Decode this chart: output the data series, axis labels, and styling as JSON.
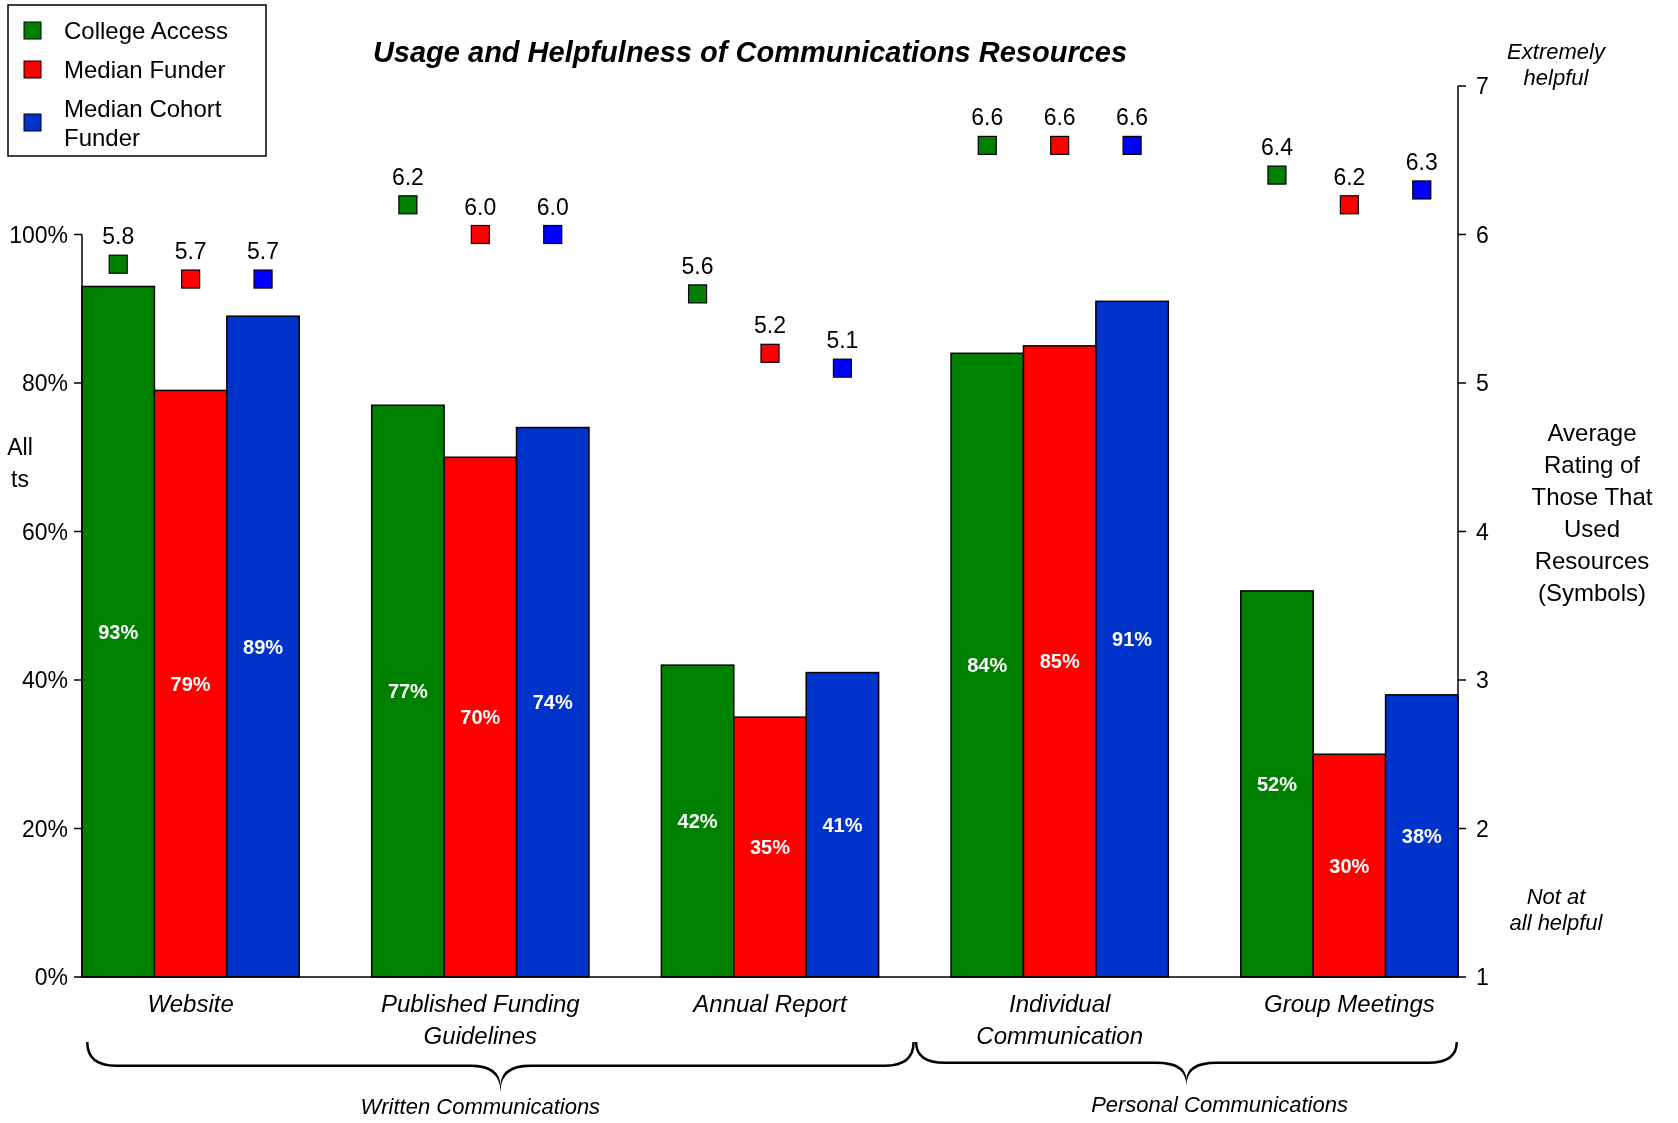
{
  "chart_data": {
    "type": "bar",
    "title": "Usage and Helpfulness of Communications Resources",
    "ylabel": "All\nts",
    "y2label": "Average Rating of Those That Used Resources (Symbols)",
    "categories": [
      "Website",
      "Published Funding Guidelines",
      "Annual Report",
      "Individual Communication",
      "Group Meetings"
    ],
    "series": [
      {
        "name": "College Access",
        "color": "#008000",
        "values": [
          93,
          77,
          42,
          84,
          52
        ],
        "value_labels": [
          "93%",
          "77%",
          "42%",
          "84%",
          "52%"
        ]
      },
      {
        "name": "Median Funder",
        "color": "#ff0000",
        "values": [
          79,
          70,
          35,
          85,
          30
        ],
        "value_labels": [
          "79%",
          "70%",
          "35%",
          "85%",
          "30%"
        ]
      },
      {
        "name": "Median Cohort Funder",
        "color": "#0033cc",
        "values": [
          89,
          74,
          41,
          91,
          38
        ],
        "value_labels": [
          "89%",
          "74%",
          "41%",
          "91%",
          "38%"
        ]
      },
      {
        "type": "scatter",
        "axis": "y2",
        "marker": "square",
        "color": "#008000",
        "values": [
          5.8,
          6.2,
          5.6,
          6.6,
          6.4
        ],
        "value_labels": [
          "5.8",
          "6.2",
          "5.6",
          "6.6",
          "6.4"
        ]
      },
      {
        "type": "scatter",
        "axis": "y2",
        "marker": "square",
        "color": "#ff0000",
        "values": [
          5.7,
          6.0,
          5.2,
          6.6,
          6.2
        ],
        "value_labels": [
          "5.7",
          "6.0",
          "5.2",
          "6.6",
          "6.2"
        ]
      },
      {
        "type": "scatter",
        "axis": "y2",
        "marker": "square",
        "color": "#0000ff",
        "values": [
          5.7,
          6.0,
          5.1,
          6.6,
          6.3
        ],
        "value_labels": [
          "5.7",
          "6.0",
          "5.1",
          "6.6",
          "6.3"
        ]
      }
    ],
    "ylim": [
      0,
      120
    ],
    "yticks": [
      {
        "value": 0,
        "label": "0%"
      },
      {
        "value": 20,
        "label": "20%"
      },
      {
        "value": 40,
        "label": "40%"
      },
      {
        "value": 60,
        "label": "60%"
      },
      {
        "value": 80,
        "label": "80%"
      },
      {
        "value": 100,
        "label": "100%"
      }
    ],
    "y2lim": [
      1,
      7
    ],
    "y2ticks": [
      1,
      2,
      3,
      4,
      5,
      6,
      7
    ],
    "grid": false,
    "legend": "top left",
    "annotations": [
      "Extremely helpful",
      "Not at all helpful",
      "Written Communications",
      "Personal Communications"
    ]
  }
}
